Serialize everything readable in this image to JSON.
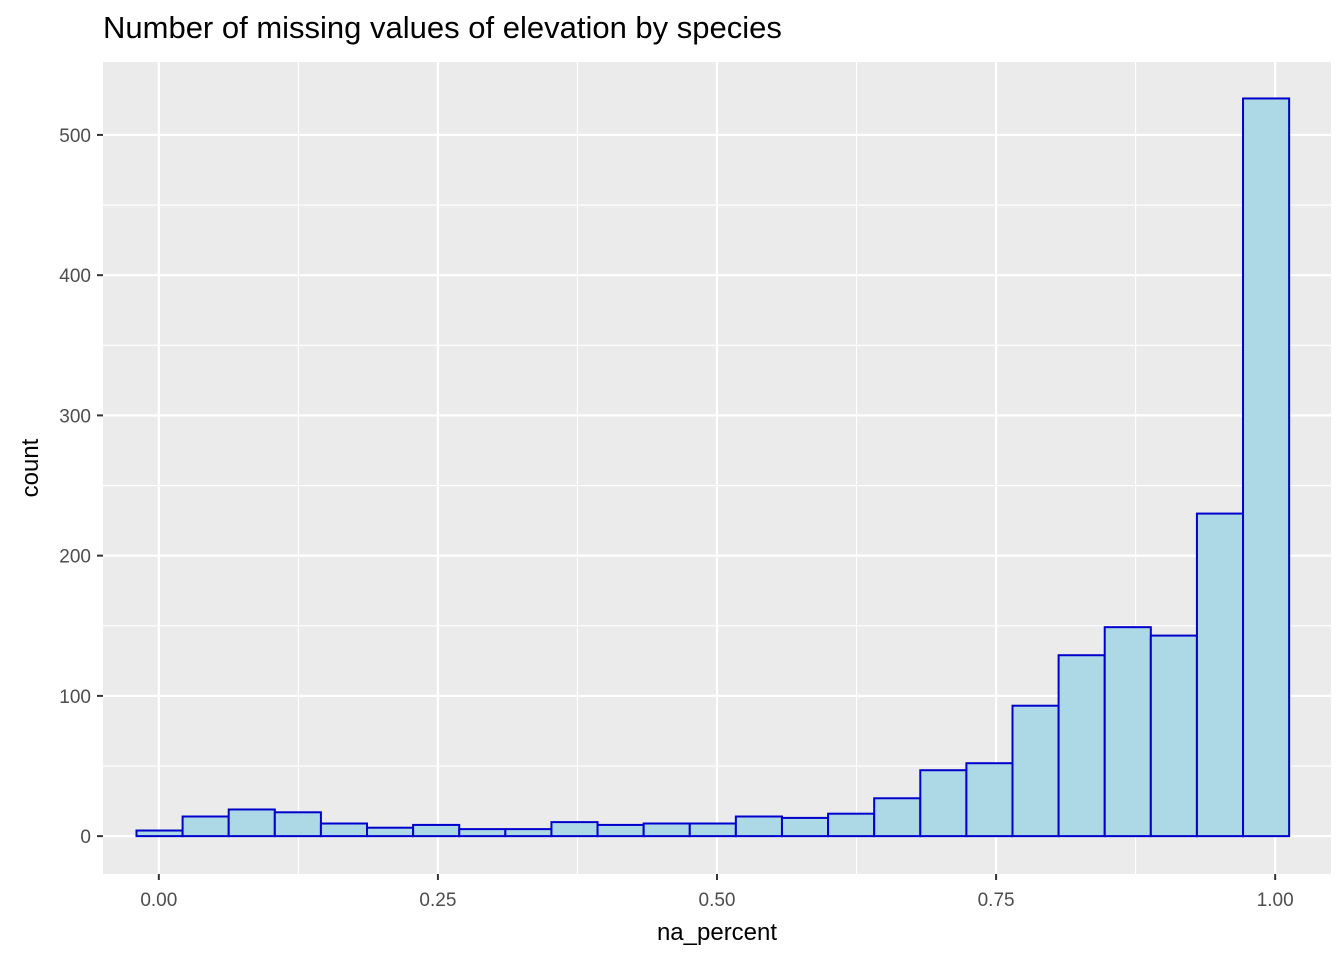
{
  "chart_data": {
    "type": "bar",
    "title": "Number of missing values of elevation by species",
    "xlabel": "na_percent",
    "ylabel": "count",
    "bin_width": 0.0413,
    "bins_start": -0.02,
    "values": [
      4,
      14,
      19,
      17,
      9,
      6,
      8,
      5,
      5,
      10,
      8,
      9,
      9,
      14,
      13,
      16,
      27,
      47,
      52,
      93,
      129,
      149,
      143,
      230,
      526
    ],
    "xlim": [
      -0.05,
      1.05
    ],
    "ylim": [
      -27,
      552
    ],
    "x_ticks": [
      {
        "value": 0,
        "label": "0.00"
      },
      {
        "value": 0.25,
        "label": "0.25"
      },
      {
        "value": 0.5,
        "label": "0.50"
      },
      {
        "value": 0.75,
        "label": "0.75"
      },
      {
        "value": 1,
        "label": "1.00"
      }
    ],
    "y_ticks": [
      {
        "value": 0,
        "label": "0"
      },
      {
        "value": 100,
        "label": "100"
      },
      {
        "value": 200,
        "label": "200"
      },
      {
        "value": 300,
        "label": "300"
      },
      {
        "value": 400,
        "label": "400"
      },
      {
        "value": 500,
        "label": "500"
      }
    ],
    "grid": true,
    "colors": {
      "panel_background": "#EBEBEB",
      "grid_major": "#FFFFFF",
      "bar_fill": "#ADD8E6",
      "bar_outline": "#0000CD",
      "tick_text": "#4D4D4D",
      "axis_title": "#000000"
    }
  }
}
